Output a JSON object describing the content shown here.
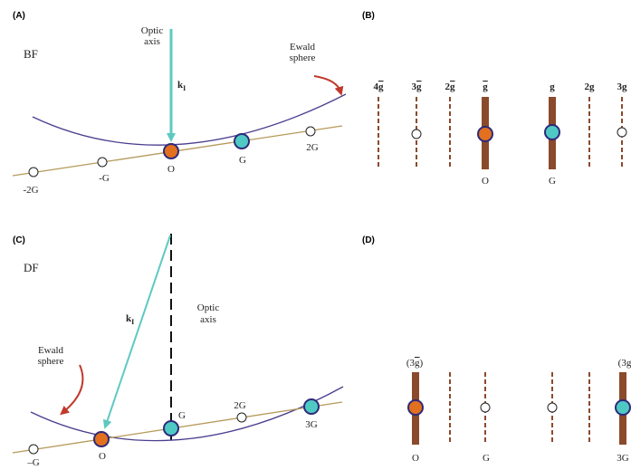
{
  "panels": {
    "A": {
      "label": "(A)",
      "mode": "BF",
      "optic_axis": [
        "Optic",
        "axis"
      ],
      "k": "k",
      "k_sub": "I",
      "ewald": [
        "Ewald",
        "sphere"
      ],
      "points": [
        "-2G",
        "-G",
        "O",
        "G",
        "2G"
      ]
    },
    "B": {
      "label": "(B)",
      "reflections": [
        "4",
        "3",
        "2",
        "g",
        "g",
        "2g",
        "3g"
      ],
      "bar_label": "g",
      "bottom": [
        "O",
        "G"
      ]
    },
    "C": {
      "label": "(C)",
      "mode": "DF",
      "optic_axis": [
        "Optic",
        "axis"
      ],
      "k": "k",
      "k_sub": "I",
      "ewald": [
        "Ewald",
        "sphere"
      ],
      "points": [
        "–G",
        "O",
        "G",
        "2G",
        "3G"
      ]
    },
    "D": {
      "label": "(D)",
      "top_left": "(3",
      "top_left_end": ")",
      "top_right": "(3g",
      "bottom": [
        "O",
        "G",
        "3G"
      ]
    }
  },
  "colors": {
    "orange_spot": "#e2701f",
    "teal_spot": "#4fc9c4",
    "spot_border": "#2d2a7a",
    "beam": "#5ec9c2",
    "ewald_line": "#4a3f8f",
    "row_line": "#b59a5a",
    "bar": "#8b4a2b",
    "arrow_red": "#c0392b"
  }
}
